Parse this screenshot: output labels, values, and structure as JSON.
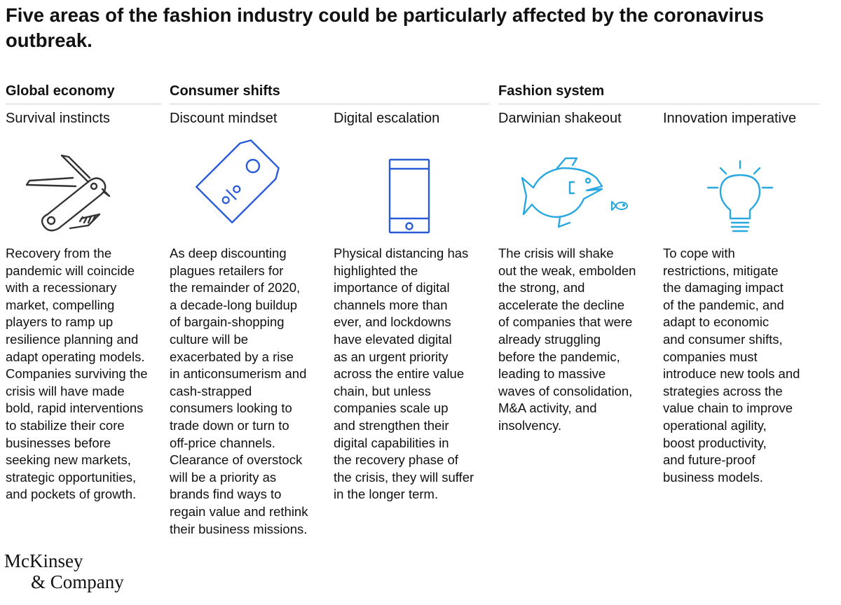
{
  "title": "Five areas of the fashion industry could be particularly affected by the coronavirus outbreak.",
  "groups": [
    {
      "label": "Global economy"
    },
    {
      "label": "Consumer shifts"
    },
    {
      "label": "Fashion system"
    }
  ],
  "columns": [
    {
      "title": "Survival instincts",
      "icon": "pocket-knife-icon",
      "text": "Recovery from the\npandemic will coincide\nwith a recessionary\nmarket, compelling\nplayers to ramp up\nresilience planning and\nadapt operating models.\nCompanies surviving the\ncrisis will have made\nbold, rapid interventions\nto stabilize their core\nbusinesses before\nseeking new markets,\nstrategic opportunities,\nand pockets of growth."
    },
    {
      "title": "Discount mindset",
      "icon": "discount-tag-icon",
      "text": "As deep discounting\nplagues retailers for\nthe remainder of 2020,\na decade-long buildup\nof bargain-shopping\nculture will be\nexacerbated by a rise\nin anticonsumerism and\ncash-strapped\nconsumers looking to\ntrade down or turn to\noff-price channels.\nClearance of overstock\nwill be a priority as\nbrands find ways to\nregain value and rethink\ntheir business missions."
    },
    {
      "title": "Digital escalation",
      "icon": "smartphone-icon",
      "text": "Physical distancing has\nhighlighted the\nimportance of digital\nchannels more than\never, and lockdowns\nhave elevated digital\nas an urgent priority\nacross the entire value\nchain, but unless\ncompanies scale up\nand strengthen their\ndigital capabilities in\nthe recovery phase of\nthe crisis, they will suffer\nin the longer term."
    },
    {
      "title": "Darwinian shakeout",
      "icon": "big-fish-small-fish-icon",
      "text": "The crisis will shake\nout the weak, embolden\nthe strong, and\naccelerate the decline\nof companies that were\nalready struggling\nbefore the pandemic,\nleading to massive\nwaves of consolidation,\nM&A activity, and\ninsolvency."
    },
    {
      "title": "Innovation imperative",
      "icon": "light-bulb-icon",
      "text": "To cope with\nrestrictions, mitigate\nthe damaging impact\nof the pandemic, and\nadapt to economic\nand consumer shifts,\ncompanies must\nintroduce new tools and\nstrategies across the\nvalue chain to improve\noperational agility,\nboost productivity,\nand future-proof\nbusiness models."
    }
  ],
  "logo": {
    "line1": "McKinsey",
    "line2": "& Company"
  },
  "colors": {
    "icon_blue": "#2a5bd7",
    "icon_gray": "#333333",
    "icon_cyan": "#29a8e0",
    "rule": "#cfcfcf"
  }
}
